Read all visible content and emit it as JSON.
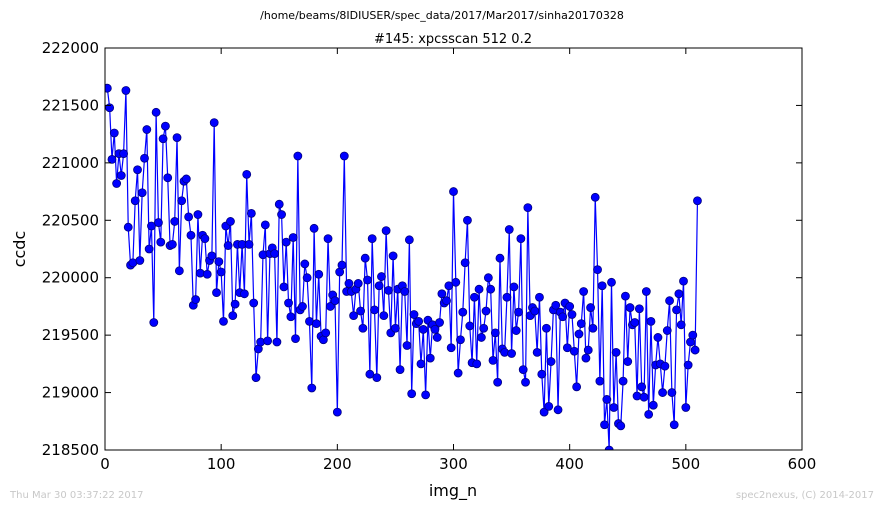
{
  "header": {
    "path": "/home/beams/8IDIUSER/spec_data/2017/Mar2017/sinha20170328",
    "title": "#145: xpcsscan 512 0.2"
  },
  "footer": {
    "timestamp": "Thu Mar 30 03:37:22 2017",
    "credit": "spec2nexus, (C) 2014-2017"
  },
  "chart_data": {
    "type": "line",
    "title": "#145: xpcsscan 512 0.2",
    "xlabel": "img_n",
    "ylabel": "ccdc",
    "xlim": [
      0,
      600
    ],
    "ylim": [
      218500,
      222000
    ],
    "xticks": [
      "0",
      "100",
      "200",
      "300",
      "400",
      "500",
      "600"
    ],
    "yticks": [
      "218500",
      "219000",
      "219500",
      "220000",
      "220500",
      "221000",
      "221500",
      "222000"
    ],
    "grid": false,
    "legend": "none",
    "marker": "circle",
    "colors": {
      "series": "#0000ff",
      "marker_edge": "#000080",
      "axes": "#000000"
    },
    "x_start": 2,
    "x_step": 2,
    "series": [
      {
        "values": [
          221650,
          221480,
          221030,
          221260,
          220820,
          221080,
          220890,
          221080,
          221630,
          220440,
          220110,
          220130,
          220670,
          220940,
          220150,
          220740,
          221040,
          221290,
          220250,
          220450,
          219610,
          221440,
          220480,
          220310,
          221210,
          221320,
          220870,
          220280,
          220290,
          220490,
          221220,
          220060,
          220670,
          220840,
          220860,
          220530,
          220370,
          219760,
          219810,
          220550,
          220040,
          220370,
          220340,
          220030,
          220150,
          220190,
          221350,
          219870,
          220140,
          220050,
          219620,
          220450,
          220280,
          220490,
          219670,
          219770,
          220290,
          219870,
          220290,
          219860,
          220900,
          220290,
          220560,
          219780,
          219130,
          219380,
          219440,
          220200,
          220460,
          219450,
          220210,
          220260,
          220210,
          219440,
          220640,
          220550,
          219920,
          220310,
          219780,
          219660,
          220350,
          219470,
          221060,
          219720,
          219750,
          220120,
          220000,
          219620,
          219040,
          220430,
          219600,
          220030,
          219490,
          219460,
          219520,
          220340,
          219750,
          219850,
          219800,
          218830,
          220050,
          220110,
          221060,
          219880,
          219950,
          219880,
          219670,
          219900,
          219950,
          219710,
          219560,
          220170,
          219980,
          219160,
          220340,
          219720,
          219130,
          219930,
          220010,
          219670,
          220410,
          219890,
          219520,
          220190,
          219560,
          219900,
          219200,
          219930,
          219880,
          219410,
          220330,
          218990,
          219680,
          219600,
          219620,
          219250,
          219550,
          218980,
          219630,
          219300,
          219590,
          219550,
          219480,
          219610,
          219860,
          219780,
          219800,
          219930,
          219390,
          220750,
          219960,
          219170,
          219460,
          219700,
          220130,
          220500,
          219580,
          219260,
          219830,
          219250,
          219900,
          219480,
          219560,
          219710,
          220000,
          219900,
          219280,
          219520,
          219090,
          220170,
          219380,
          219350,
          219830,
          220420,
          219340,
          219920,
          219540,
          219700,
          220340,
          219200,
          219090,
          220610,
          219670,
          219740,
          219710,
          219350,
          219830,
          219160,
          218830,
          219560,
          218880,
          219270,
          219720,
          219760,
          218850,
          219700,
          219660,
          219780,
          219390,
          219750,
          219680,
          219360,
          219050,
          219510,
          219600,
          219880,
          219300,
          219370,
          219740,
          219560,
          220700,
          220070,
          219100,
          219930,
          218720,
          218940,
          218500,
          219960,
          218870,
          219350,
          218730,
          218710,
          219100,
          219840,
          219270,
          219740,
          219590,
          219610,
          218970,
          219730,
          219050,
          218960,
          219880,
          218810,
          219620,
          218890,
          219240,
          219480,
          219250,
          219000,
          219230,
          219540,
          219800,
          219000,
          218720,
          219720,
          219860,
          219590,
          219970,
          218870,
          219240,
          219440,
          219500,
          219370,
          220670
        ]
      }
    ]
  }
}
